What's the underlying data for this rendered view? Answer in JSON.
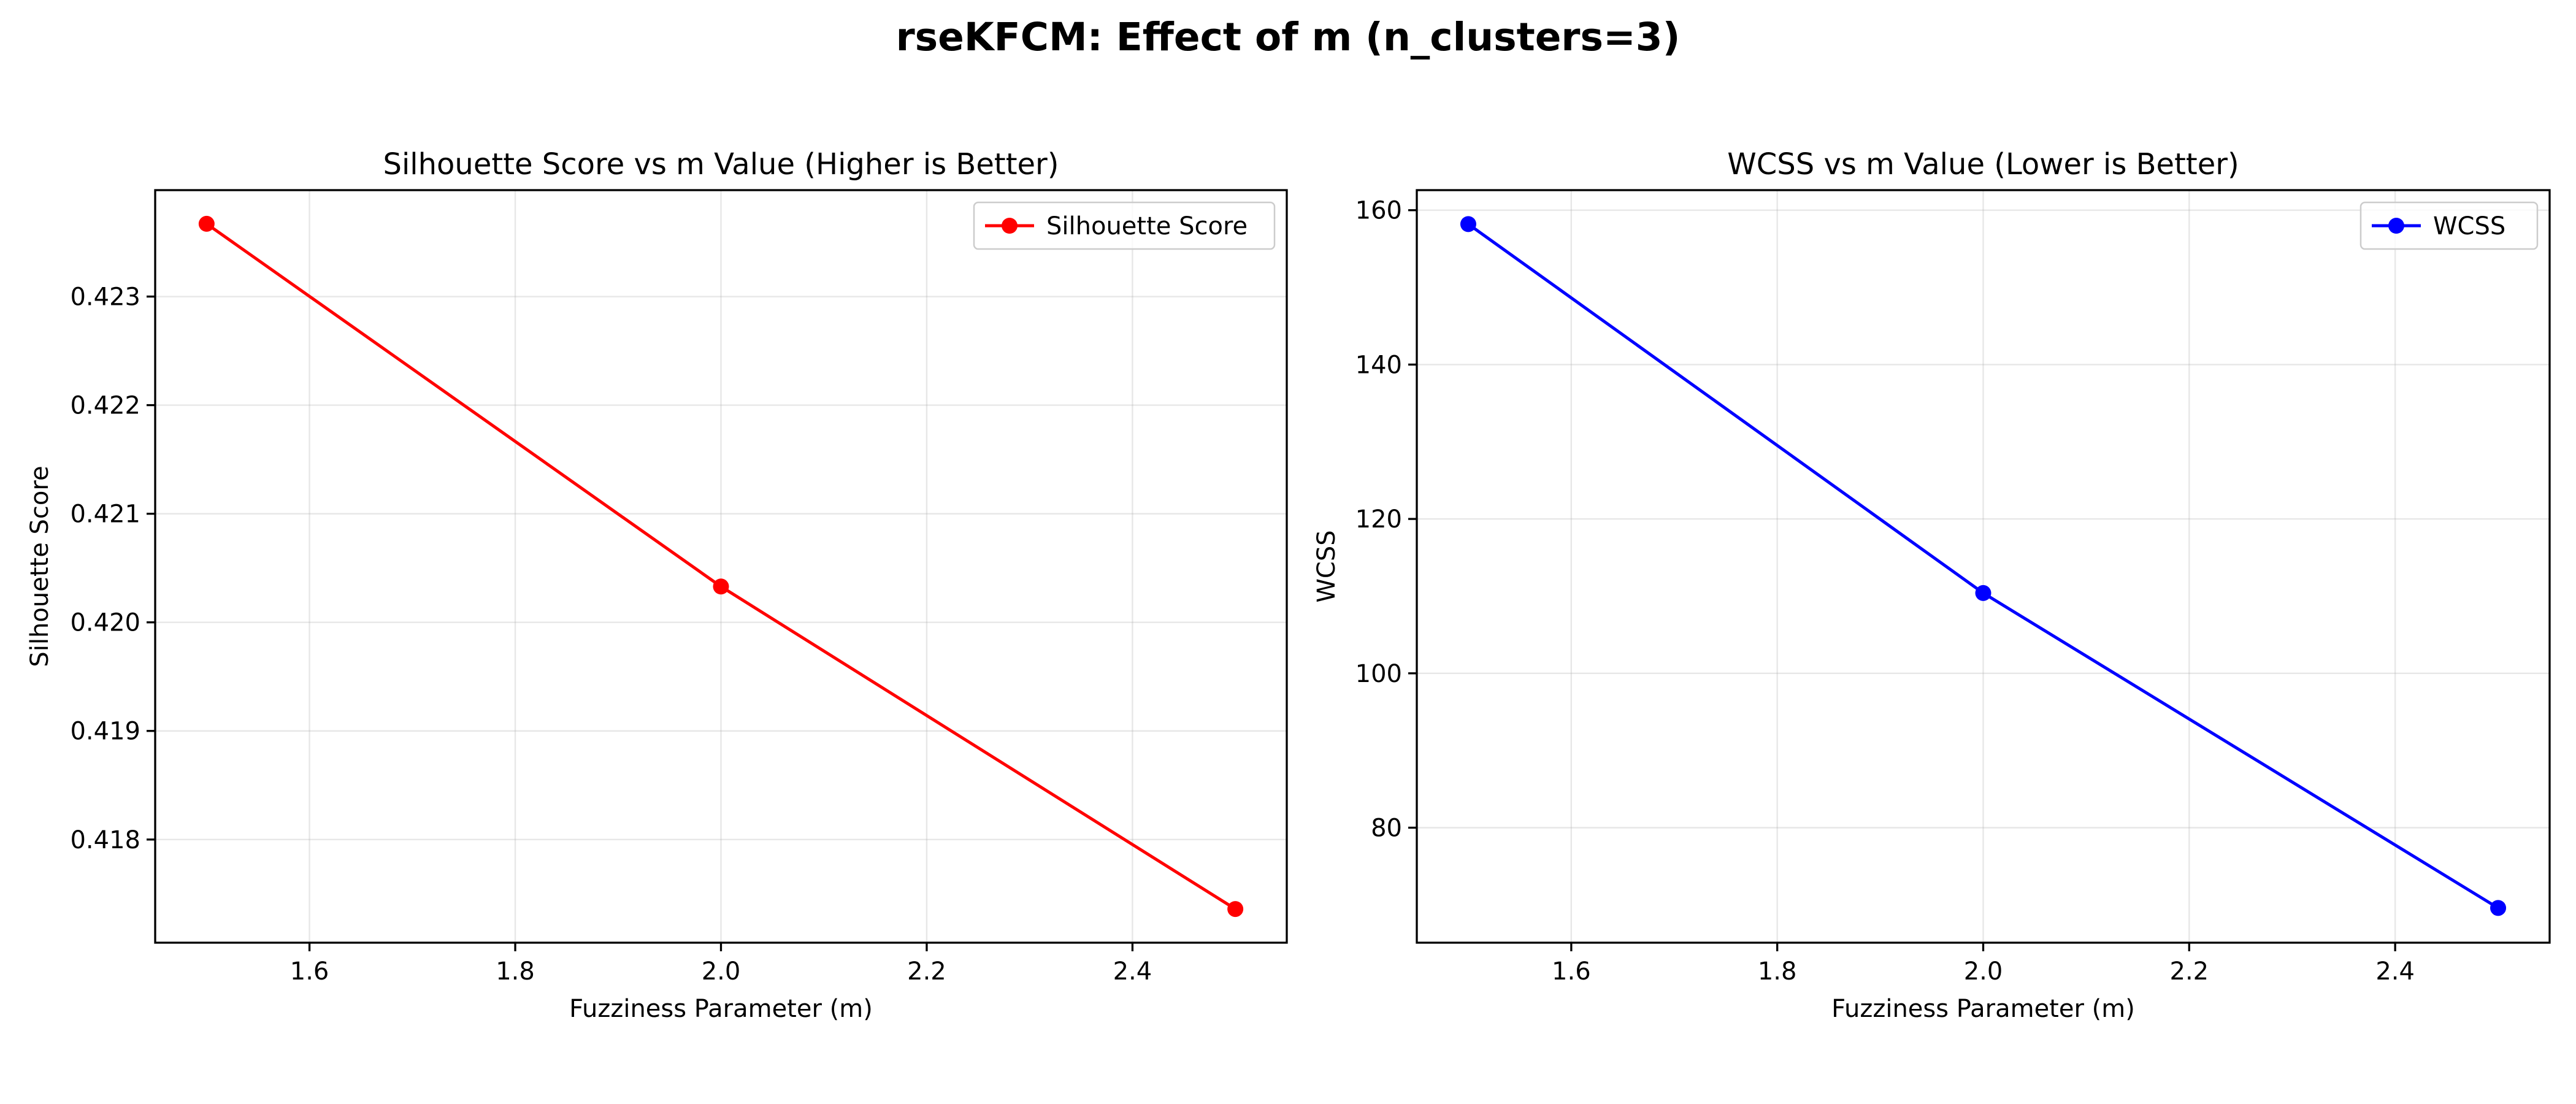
{
  "figure": {
    "suptitle": "rseKFCM: Effect of m (n_clusters=3)"
  },
  "chart_data": [
    {
      "type": "line",
      "title": "Silhouette Score vs m Value (Higher is Better)",
      "xlabel": "Fuzziness Parameter (m)",
      "ylabel": "Silhouette Score",
      "x": [
        1.5,
        2.0,
        2.5
      ],
      "series": [
        {
          "name": "Silhouette Score",
          "values": [
            0.42367,
            0.42033,
            0.41736
          ],
          "color": "#ff0000"
        }
      ],
      "xlim": [
        1.45,
        2.55
      ],
      "ylim": [
        0.41705,
        0.42398
      ],
      "xticks": [
        1.6,
        1.8,
        2.0,
        2.2,
        2.4
      ],
      "xtick_labels": [
        "1.6",
        "1.8",
        "2.0",
        "2.2",
        "2.4"
      ],
      "yticks": [
        0.418,
        0.419,
        0.42,
        0.421,
        0.422,
        0.423
      ],
      "ytick_labels": [
        "0.418",
        "0.419",
        "0.420",
        "0.421",
        "0.422",
        "0.423"
      ],
      "grid": true,
      "legend": "upper right"
    },
    {
      "type": "line",
      "title": "WCSS vs m Value (Lower is Better)",
      "xlabel": "Fuzziness Parameter (m)",
      "ylabel": "WCSS",
      "x": [
        1.5,
        2.0,
        2.5
      ],
      "series": [
        {
          "name": "WCSS",
          "values": [
            158.2,
            110.4,
            69.6
          ],
          "color": "#0000ff"
        }
      ],
      "xlim": [
        1.45,
        2.55
      ],
      "ylim": [
        65.1,
        162.6
      ],
      "xticks": [
        1.6,
        1.8,
        2.0,
        2.2,
        2.4
      ],
      "xtick_labels": [
        "1.6",
        "1.8",
        "2.0",
        "2.2",
        "2.4"
      ],
      "yticks": [
        80,
        100,
        120,
        140,
        160
      ],
      "ytick_labels": [
        "80",
        "100",
        "120",
        "140",
        "160"
      ],
      "grid": true,
      "legend": "upper right"
    }
  ]
}
